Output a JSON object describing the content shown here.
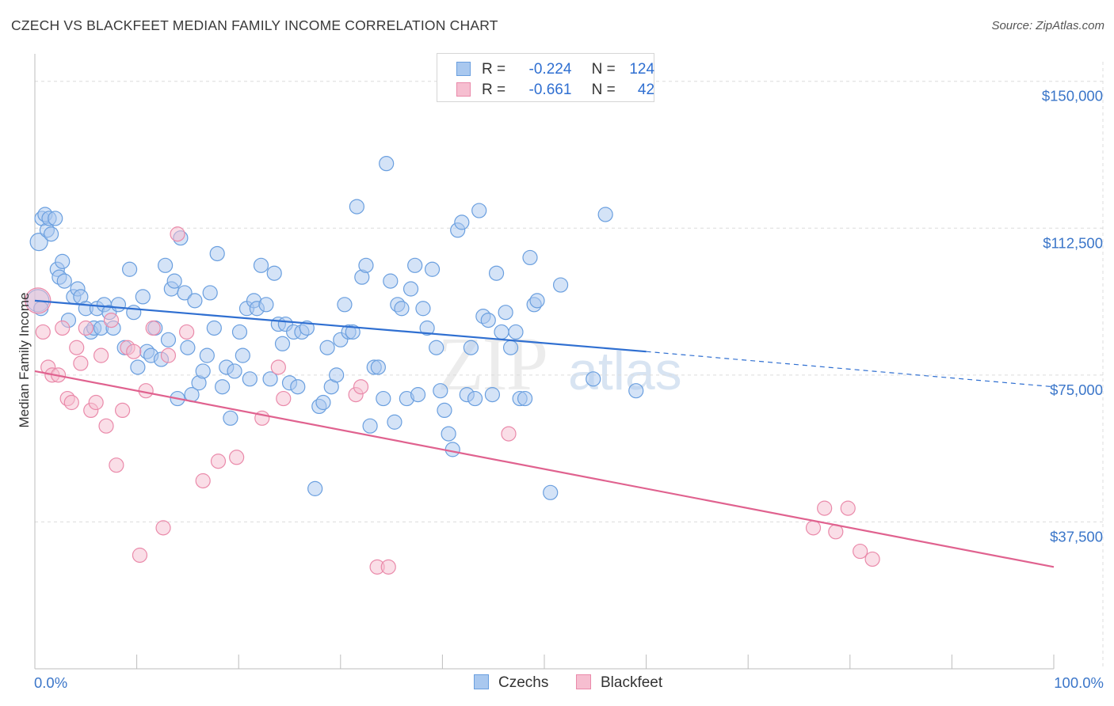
{
  "title": "CZECH VS BLACKFEET MEDIAN FAMILY INCOME CORRELATION CHART",
  "source": "Source: ZipAtlas.com",
  "watermark": {
    "zip": "ZIP",
    "atlas": "atlas"
  },
  "legend": {
    "r_label": "R =",
    "n_label": "N =",
    "czechs": {
      "r": "-0.224",
      "n": "124"
    },
    "blackfeet": {
      "r": "-0.661",
      "n": "42"
    }
  },
  "bottom_legend": {
    "czechs": "Czechs",
    "blackfeet": "Blackfeet"
  },
  "colors": {
    "czechs_fill": "#a9c8ef",
    "czechs_stroke": "#6a9fdf",
    "czechs_line": "#2f6fd1",
    "blackfeet_fill": "#f6bed0",
    "blackfeet_stroke": "#ea8aaa",
    "blackfeet_line": "#e0628f",
    "tick_text": "#3b76c9",
    "grid": "#dcdcdc"
  },
  "chart_data": {
    "type": "scatter",
    "title": "CZECH VS BLACKFEET MEDIAN FAMILY INCOME CORRELATION CHART",
    "xlabel": "",
    "ylabel": "Median Family Income",
    "xlim": [
      0,
      100
    ],
    "ylim": [
      0,
      155000
    ],
    "x_tick_labels": [
      "0.0%",
      "100.0%"
    ],
    "y_ticks": [
      37500,
      75000,
      112500,
      150000
    ],
    "y_tick_labels": [
      "$37,500",
      "$75,000",
      "$112,500",
      "$150,000"
    ],
    "series": [
      {
        "name": "Czechs",
        "trend": {
          "x0": 0,
          "y0": 94000,
          "x1": 60,
          "y1": 81000,
          "dash_x1": 100,
          "dash_y1": 72000
        },
        "points": [
          [
            0.3,
            94000,
            14
          ],
          [
            0.4,
            109000,
            11
          ],
          [
            0.6,
            92000,
            9
          ],
          [
            0.7,
            115000,
            9
          ],
          [
            1.0,
            116000,
            9
          ],
          [
            1.2,
            112000,
            9
          ],
          [
            1.4,
            115000,
            9
          ],
          [
            1.6,
            111000,
            9
          ],
          [
            2.0,
            115000,
            9
          ],
          [
            2.2,
            102000,
            9
          ],
          [
            2.4,
            100000,
            9
          ],
          [
            2.7,
            104000,
            9
          ],
          [
            2.9,
            99000,
            9
          ],
          [
            3.3,
            89000,
            9
          ],
          [
            3.8,
            95000,
            9
          ],
          [
            4.2,
            97000,
            9
          ],
          [
            4.5,
            95000,
            9
          ],
          [
            5.0,
            92000,
            9
          ],
          [
            5.5,
            86000,
            9
          ],
          [
            5.8,
            87000,
            9
          ],
          [
            6.1,
            92000,
            9
          ],
          [
            6.5,
            87000,
            9
          ],
          [
            6.8,
            93000,
            9
          ],
          [
            7.3,
            91000,
            9
          ],
          [
            7.7,
            87000,
            9
          ],
          [
            8.2,
            93000,
            9
          ],
          [
            8.8,
            82000,
            9
          ],
          [
            9.3,
            102000,
            9
          ],
          [
            9.7,
            91000,
            9
          ],
          [
            10.1,
            77000,
            9
          ],
          [
            10.6,
            95000,
            9
          ],
          [
            11.0,
            81000,
            9
          ],
          [
            11.4,
            80000,
            9
          ],
          [
            11.8,
            87000,
            9
          ],
          [
            12.4,
            79000,
            9
          ],
          [
            12.8,
            103000,
            9
          ],
          [
            13.1,
            84000,
            9
          ],
          [
            13.4,
            97000,
            9
          ],
          [
            13.7,
            99000,
            9
          ],
          [
            14.0,
            69000,
            9
          ],
          [
            14.3,
            110000,
            9
          ],
          [
            14.7,
            96000,
            9
          ],
          [
            15.0,
            82000,
            9
          ],
          [
            15.4,
            70000,
            9
          ],
          [
            15.7,
            94000,
            9
          ],
          [
            16.1,
            73000,
            9
          ],
          [
            16.5,
            76000,
            9
          ],
          [
            16.9,
            80000,
            9
          ],
          [
            17.2,
            96000,
            9
          ],
          [
            17.6,
            87000,
            9
          ],
          [
            17.9,
            106000,
            9
          ],
          [
            18.4,
            72000,
            9
          ],
          [
            18.8,
            77000,
            9
          ],
          [
            19.2,
            64000,
            9
          ],
          [
            19.6,
            76000,
            9
          ],
          [
            20.1,
            86000,
            9
          ],
          [
            20.4,
            80000,
            9
          ],
          [
            20.8,
            92000,
            9
          ],
          [
            21.1,
            74000,
            9
          ],
          [
            21.5,
            94000,
            9
          ],
          [
            21.8,
            92000,
            9
          ],
          [
            22.2,
            103000,
            9
          ],
          [
            22.7,
            93000,
            9
          ],
          [
            23.1,
            74000,
            9
          ],
          [
            23.5,
            101000,
            9
          ],
          [
            23.9,
            88000,
            9
          ],
          [
            24.3,
            83000,
            9
          ],
          [
            24.6,
            88000,
            9
          ],
          [
            25.0,
            73000,
            9
          ],
          [
            25.4,
            86000,
            9
          ],
          [
            25.8,
            72000,
            9
          ],
          [
            26.2,
            86000,
            9
          ],
          [
            26.7,
            87000,
            9
          ],
          [
            27.5,
            46000,
            9
          ],
          [
            27.9,
            67000,
            9
          ],
          [
            28.3,
            68000,
            9
          ],
          [
            28.7,
            82000,
            9
          ],
          [
            29.1,
            72000,
            9
          ],
          [
            29.6,
            75000,
            9
          ],
          [
            30.0,
            84000,
            9
          ],
          [
            30.4,
            93000,
            9
          ],
          [
            30.8,
            86000,
            9
          ],
          [
            31.2,
            86000,
            9
          ],
          [
            31.6,
            118000,
            9
          ],
          [
            32.1,
            100000,
            9
          ],
          [
            32.5,
            103000,
            9
          ],
          [
            32.9,
            62000,
            9
          ],
          [
            33.3,
            77000,
            9
          ],
          [
            33.7,
            77000,
            9
          ],
          [
            34.2,
            69000,
            9
          ],
          [
            34.5,
            129000,
            9
          ],
          [
            34.9,
            99000,
            9
          ],
          [
            35.3,
            63000,
            9
          ],
          [
            35.6,
            93000,
            9
          ],
          [
            36.0,
            92000,
            9
          ],
          [
            36.5,
            69000,
            9
          ],
          [
            36.9,
            97000,
            9
          ],
          [
            37.3,
            103000,
            9
          ],
          [
            37.6,
            70000,
            9
          ],
          [
            38.1,
            92000,
            9
          ],
          [
            38.5,
            87000,
            9
          ],
          [
            39.0,
            102000,
            9
          ],
          [
            39.4,
            82000,
            9
          ],
          [
            39.8,
            71000,
            9
          ],
          [
            40.2,
            66000,
            9
          ],
          [
            40.6,
            60000,
            9
          ],
          [
            41.0,
            56000,
            9
          ],
          [
            41.5,
            112000,
            9
          ],
          [
            41.9,
            114000,
            9
          ],
          [
            42.4,
            70000,
            9
          ],
          [
            42.8,
            82000,
            9
          ],
          [
            43.2,
            69000,
            9
          ],
          [
            43.6,
            117000,
            9
          ],
          [
            44.0,
            90000,
            9
          ],
          [
            44.5,
            89000,
            9
          ],
          [
            44.9,
            70000,
            9
          ],
          [
            45.3,
            101000,
            9
          ],
          [
            45.8,
            86000,
            9
          ],
          [
            46.2,
            91000,
            9
          ],
          [
            46.7,
            82000,
            9
          ],
          [
            47.2,
            86000,
            9
          ],
          [
            47.6,
            69000,
            9
          ],
          [
            48.1,
            69000,
            9
          ],
          [
            48.6,
            105000,
            9
          ],
          [
            49.0,
            93000,
            9
          ],
          [
            49.3,
            94000,
            9
          ],
          [
            50.6,
            45000,
            9
          ],
          [
            51.6,
            98000,
            9
          ],
          [
            54.8,
            74000,
            9
          ],
          [
            56.0,
            116000,
            9
          ],
          [
            59.0,
            71000,
            9
          ]
        ]
      },
      {
        "name": "Blackfeet",
        "trend": {
          "x0": 0,
          "y0": 76000,
          "x1": 100,
          "y1": 26000
        },
        "points": [
          [
            0.3,
            94000,
            16
          ],
          [
            0.8,
            86000,
            9
          ],
          [
            1.3,
            77000,
            9
          ],
          [
            1.7,
            75000,
            9
          ],
          [
            2.3,
            75000,
            9
          ],
          [
            2.7,
            87000,
            9
          ],
          [
            3.2,
            69000,
            9
          ],
          [
            3.6,
            68000,
            9
          ],
          [
            4.1,
            82000,
            9
          ],
          [
            4.5,
            78000,
            9
          ],
          [
            5.0,
            87000,
            9
          ],
          [
            5.5,
            66000,
            9
          ],
          [
            6.0,
            68000,
            9
          ],
          [
            6.5,
            80000,
            9
          ],
          [
            7.0,
            62000,
            9
          ],
          [
            7.5,
            89000,
            9
          ],
          [
            8.0,
            52000,
            9
          ],
          [
            8.6,
            66000,
            9
          ],
          [
            9.1,
            82000,
            9
          ],
          [
            9.7,
            81000,
            9
          ],
          [
            10.3,
            29000,
            9
          ],
          [
            10.9,
            71000,
            9
          ],
          [
            11.6,
            87000,
            9
          ],
          [
            12.6,
            36000,
            9
          ],
          [
            13.1,
            80000,
            9
          ],
          [
            14.0,
            111000,
            9
          ],
          [
            14.9,
            86000,
            9
          ],
          [
            16.5,
            48000,
            9
          ],
          [
            18.0,
            53000,
            9
          ],
          [
            19.8,
            54000,
            9
          ],
          [
            22.3,
            64000,
            9
          ],
          [
            23.9,
            77000,
            9
          ],
          [
            24.4,
            69000,
            9
          ],
          [
            31.5,
            70000,
            9
          ],
          [
            32.0,
            72000,
            9
          ],
          [
            33.6,
            26000,
            9
          ],
          [
            34.7,
            26000,
            9
          ],
          [
            46.5,
            60000,
            9
          ],
          [
            76.4,
            36000,
            9
          ],
          [
            77.5,
            41000,
            9
          ],
          [
            78.6,
            35000,
            9
          ],
          [
            79.8,
            41000,
            9
          ],
          [
            81.0,
            30000,
            9
          ],
          [
            82.2,
            28000,
            9
          ]
        ]
      }
    ]
  }
}
